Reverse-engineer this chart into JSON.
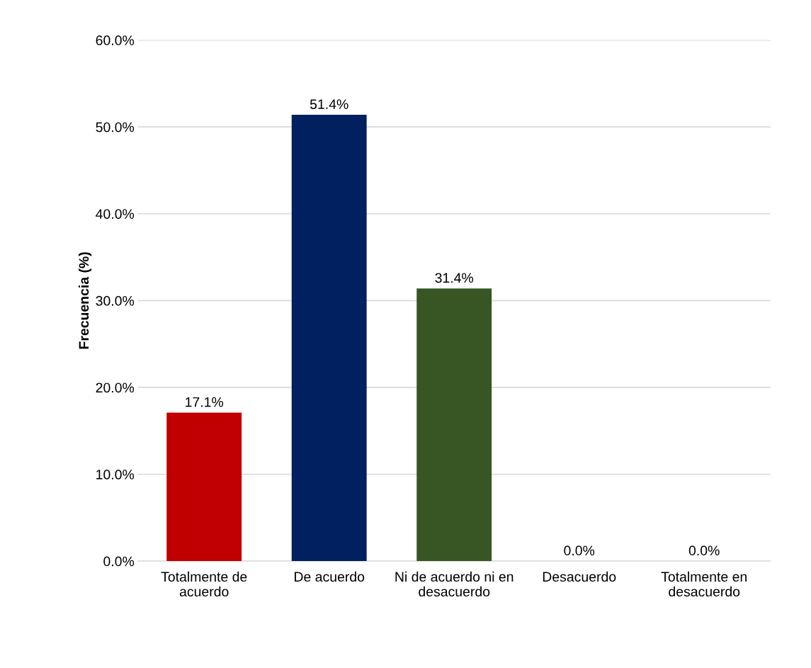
{
  "chart_data": {
    "type": "bar",
    "ylabel": "Frecuencia (%)",
    "categories": [
      "Totalmente de acuerdo",
      "De acuerdo",
      "Ni de acuerdo ni en desacuerdo",
      "Desacuerdo",
      "Totalmente en desacuerdo"
    ],
    "values": [
      17.1,
      51.4,
      31.4,
      0.0,
      0.0
    ],
    "colors": [
      "#c00000",
      "#002060",
      "#375623",
      "#bf9000",
      "#262626"
    ],
    "value_labels": [
      "17.1%",
      "51.4%",
      "31.4%",
      "0.0%",
      "0.0%"
    ],
    "ylim": [
      0,
      60
    ],
    "yticks": [
      {
        "value": 0,
        "label": "0.0%"
      },
      {
        "value": 10,
        "label": "10.0%"
      },
      {
        "value": 20,
        "label": "20.0%"
      },
      {
        "value": 30,
        "label": "30.0%"
      },
      {
        "value": 40,
        "label": "40.0%"
      },
      {
        "value": 50,
        "label": "50.0%"
      },
      {
        "value": 60,
        "label": "60.0%"
      }
    ],
    "grid": "y"
  }
}
